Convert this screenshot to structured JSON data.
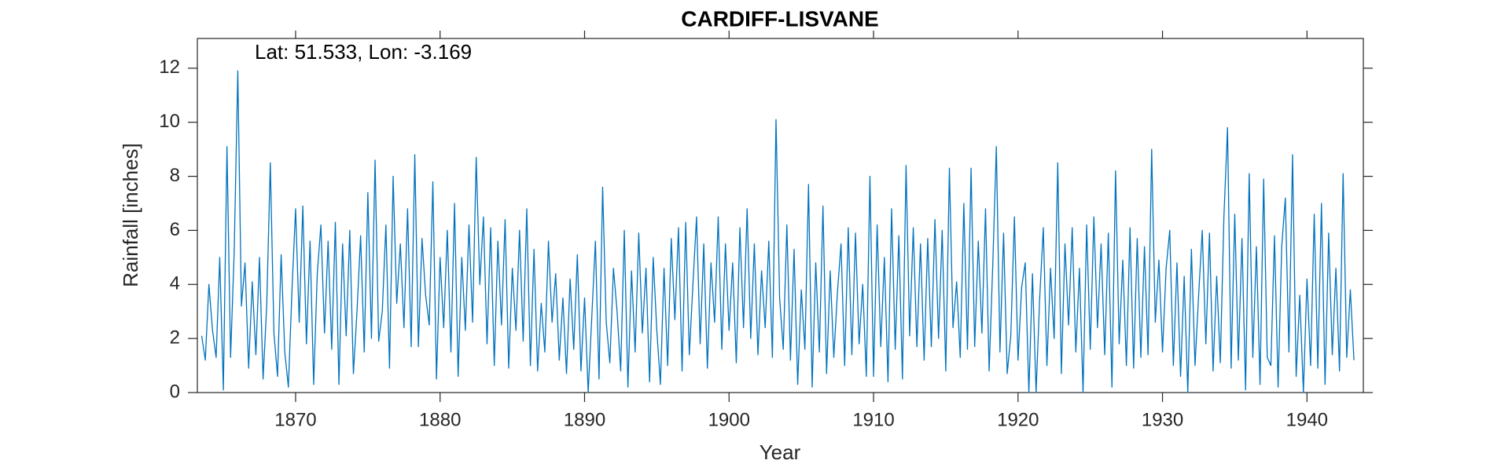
{
  "chart_data": {
    "type": "line",
    "title": "CARDIFF-LISVANE",
    "annotation": "Lat: 51.533, Lon: -3.169",
    "x_label": "Year",
    "y_label": "Rainfall [inches]",
    "color": "#0072bd",
    "xlim": [
      1863.2,
      1943.9
    ],
    "xticks": [
      1870,
      1880,
      1890,
      1900,
      1910,
      1920,
      1930,
      1940
    ],
    "ylim": [
      0,
      13.1
    ],
    "yticks": [
      0,
      2,
      4,
      6,
      8,
      10,
      12
    ],
    "x": [
      1863.5,
      1863.75,
      1864,
      1864.25,
      1864.5,
      1864.75,
      1865,
      1865.25,
      1865.5,
      1865.75,
      1866,
      1866.25,
      1866.5,
      1866.75,
      1867,
      1867.25,
      1867.5,
      1867.75,
      1868,
      1868.25,
      1868.5,
      1868.75,
      1869,
      1869.25,
      1869.5,
      1869.75,
      1870,
      1870.25,
      1870.5,
      1870.75,
      1871,
      1871.25,
      1871.5,
      1871.75,
      1872,
      1872.25,
      1872.5,
      1872.75,
      1873,
      1873.25,
      1873.5,
      1873.75,
      1874,
      1874.25,
      1874.5,
      1874.75,
      1875,
      1875.25,
      1875.5,
      1875.75,
      1876,
      1876.25,
      1876.5,
      1876.75,
      1877,
      1877.25,
      1877.5,
      1877.75,
      1878,
      1878.25,
      1878.5,
      1878.75,
      1879,
      1879.25,
      1879.5,
      1879.75,
      1880,
      1880.25,
      1880.5,
      1880.75,
      1881,
      1881.25,
      1881.5,
      1881.75,
      1882,
      1882.25,
      1882.5,
      1882.75,
      1883,
      1883.25,
      1883.5,
      1883.75,
      1884,
      1884.25,
      1884.5,
      1884.75,
      1885,
      1885.25,
      1885.5,
      1885.75,
      1886,
      1886.25,
      1886.5,
      1886.75,
      1887,
      1887.25,
      1887.5,
      1887.75,
      1888,
      1888.25,
      1888.5,
      1888.75,
      1889,
      1889.25,
      1889.5,
      1889.75,
      1890,
      1890.25,
      1890.5,
      1890.75,
      1891,
      1891.25,
      1891.5,
      1891.75,
      1892,
      1892.25,
      1892.5,
      1892.75,
      1893,
      1893.25,
      1893.5,
      1893.75,
      1894,
      1894.25,
      1894.5,
      1894.75,
      1895,
      1895.25,
      1895.5,
      1895.75,
      1896,
      1896.25,
      1896.5,
      1896.75,
      1897,
      1897.25,
      1897.5,
      1897.75,
      1898,
      1898.25,
      1898.5,
      1898.75,
      1899,
      1899.25,
      1899.5,
      1899.75,
      1900,
      1900.25,
      1900.5,
      1900.75,
      1901,
      1901.25,
      1901.5,
      1901.75,
      1902,
      1902.25,
      1902.5,
      1902.75,
      1903,
      1903.25,
      1903.5,
      1903.75,
      1904,
      1904.25,
      1904.5,
      1904.75,
      1905,
      1905.25,
      1905.5,
      1905.75,
      1906,
      1906.25,
      1906.5,
      1906.75,
      1907,
      1907.25,
      1907.5,
      1907.75,
      1908,
      1908.25,
      1908.5,
      1908.75,
      1909,
      1909.25,
      1909.5,
      1909.75,
      1910,
      1910.25,
      1910.5,
      1910.75,
      1911,
      1911.25,
      1911.5,
      1911.75,
      1912,
      1912.25,
      1912.5,
      1912.75,
      1913,
      1913.25,
      1913.5,
      1913.75,
      1914,
      1914.25,
      1914.5,
      1914.75,
      1915,
      1915.25,
      1915.5,
      1915.75,
      1916,
      1916.25,
      1916.5,
      1916.75,
      1917,
      1917.25,
      1917.5,
      1917.75,
      1918,
      1918.25,
      1918.5,
      1918.75,
      1919,
      1919.25,
      1919.5,
      1919.75,
      1920,
      1920.25,
      1920.5,
      1920.75,
      1921,
      1921.25,
      1921.5,
      1921.75,
      1922,
      1922.25,
      1922.5,
      1922.75,
      1923,
      1923.25,
      1923.5,
      1923.75,
      1924,
      1924.25,
      1924.5,
      1924.75,
      1925,
      1925.25,
      1925.5,
      1925.75,
      1926,
      1926.25,
      1926.5,
      1926.75,
      1927,
      1927.25,
      1927.5,
      1927.75,
      1928,
      1928.25,
      1928.5,
      1928.75,
      1929,
      1929.25,
      1929.5,
      1929.75,
      1930,
      1930.25,
      1930.5,
      1930.75,
      1931,
      1931.25,
      1931.5,
      1931.75,
      1932,
      1932.25,
      1932.5,
      1932.75,
      1933,
      1933.25,
      1933.5,
      1933.75,
      1934,
      1934.25,
      1934.5,
      1934.75,
      1935,
      1935.25,
      1935.5,
      1935.75,
      1936,
      1936.25,
      1936.5,
      1936.75,
      1937,
      1937.25,
      1937.5,
      1937.75,
      1938,
      1938.25,
      1938.5,
      1938.75,
      1939,
      1939.25,
      1939.5,
      1939.75,
      1940,
      1940.25,
      1940.5,
      1940.75,
      1941,
      1941.25,
      1941.5,
      1941.75,
      1942,
      1942.25,
      1942.5,
      1942.75,
      1943,
      1943.25
    ],
    "values": [
      2.1,
      1.2,
      4.0,
      2.3,
      1.3,
      5.0,
      0.1,
      9.1,
      1.3,
      5.2,
      11.9,
      3.2,
      4.8,
      0.9,
      4.1,
      1.4,
      5.0,
      0.5,
      3.2,
      8.5,
      2.2,
      0.6,
      5.1,
      1.5,
      0.2,
      3.8,
      6.8,
      2.6,
      6.9,
      1.8,
      5.6,
      0.3,
      4.4,
      6.2,
      2.2,
      5.6,
      1.6,
      6.3,
      0.3,
      5.5,
      2.1,
      6.0,
      0.7,
      3.0,
      5.8,
      1.5,
      7.4,
      2.0,
      8.6,
      1.9,
      3.0,
      6.2,
      0.9,
      8.0,
      3.3,
      5.5,
      2.4,
      6.8,
      1.7,
      8.8,
      1.7,
      5.7,
      3.6,
      2.5,
      7.8,
      0.5,
      5.0,
      2.4,
      6.0,
      1.5,
      7.0,
      0.6,
      5.0,
      2.3,
      6.2,
      2.6,
      8.7,
      4.0,
      6.5,
      1.8,
      6.1,
      1.0,
      5.6,
      2.5,
      6.4,
      0.9,
      4.6,
      2.3,
      6.0,
      1.9,
      6.8,
      1.0,
      5.3,
      0.8,
      3.3,
      1.5,
      5.6,
      2.6,
      4.4,
      1.2,
      3.5,
      0.7,
      4.2,
      1.6,
      5.1,
      0.8,
      3.5,
      0.0,
      2.8,
      5.6,
      0.5,
      7.6,
      2.6,
      1.1,
      4.6,
      3.0,
      0.8,
      6.0,
      0.2,
      4.5,
      1.5,
      5.9,
      2.2,
      4.6,
      0.4,
      5.0,
      2.3,
      0.3,
      4.6,
      1.0,
      5.7,
      2.7,
      6.1,
      0.8,
      6.3,
      1.4,
      4.0,
      6.5,
      1.8,
      5.5,
      0.9,
      4.8,
      2.6,
      6.5,
      1.6,
      5.5,
      2.3,
      4.8,
      1.1,
      6.1,
      2.4,
      6.8,
      2.0,
      5.5,
      1.4,
      4.5,
      2.4,
      5.6,
      1.3,
      10.1,
      3.5,
      1.6,
      6.2,
      1.2,
      5.3,
      0.3,
      3.8,
      1.6,
      7.7,
      0.2,
      4.8,
      1.5,
      6.9,
      0.7,
      4.5,
      1.3,
      3.7,
      5.5,
      1.0,
      6.1,
      1.4,
      5.9,
      1.8,
      4.0,
      0.6,
      8.0,
      0.6,
      6.2,
      1.7,
      5.0,
      0.4,
      6.8,
      1.6,
      5.8,
      0.5,
      8.4,
      2.1,
      6.1,
      1.7,
      5.5,
      1.2,
      5.7,
      1.7,
      6.4,
      2.0,
      6.0,
      0.8,
      8.3,
      2.4,
      4.1,
      1.3,
      7.0,
      1.6,
      8.3,
      1.7,
      5.6,
      2.2,
      6.8,
      0.8,
      4.7,
      9.1,
      1.5,
      5.9,
      0.7,
      2.1,
      6.5,
      1.2,
      3.9,
      4.8,
      0.0,
      4.4,
      0.0,
      3.5,
      6.1,
      1.0,
      4.6,
      2.0,
      8.5,
      0.7,
      5.5,
      2.5,
      6.1,
      1.5,
      4.6,
      0.0,
      6.2,
      1.6,
      6.5,
      2.4,
      5.5,
      1.4,
      5.9,
      0.2,
      8.2,
      1.8,
      4.9,
      1.0,
      6.1,
      0.9,
      5.7,
      1.3,
      5.4,
      1.4,
      9.0,
      2.6,
      4.9,
      1.5,
      4.6,
      6.0,
      1.0,
      4.8,
      0.6,
      4.3,
      0.0,
      5.3,
      1.0,
      3.6,
      6.0,
      1.8,
      5.9,
      0.8,
      4.3,
      1.1,
      6.5,
      9.8,
      0.9,
      6.6,
      1.2,
      5.7,
      0.1,
      8.1,
      1.3,
      5.4,
      0.3,
      7.9,
      1.3,
      1.0,
      5.8,
      0.2,
      5.4,
      7.2,
      1.5,
      8.8,
      0.6,
      3.6,
      0.0,
      4.2,
      1.0,
      6.6,
      0.9,
      7.0,
      0.3,
      5.9,
      1.4,
      4.6,
      0.8,
      8.1,
      1.3,
      3.8,
      1.2
    ]
  }
}
